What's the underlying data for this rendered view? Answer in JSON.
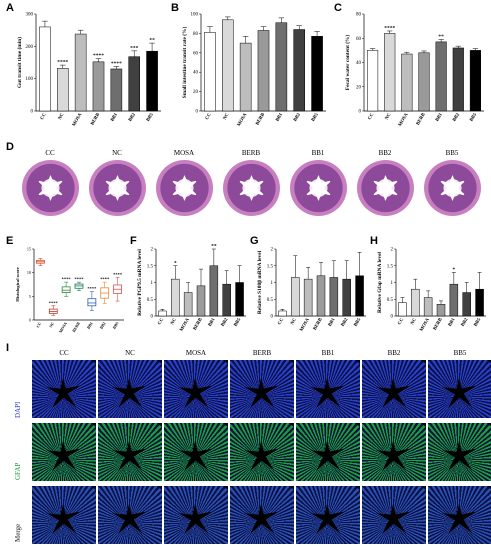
{
  "panel_labels": {
    "A": "A",
    "B": "B",
    "C": "C",
    "D": "D",
    "E": "E",
    "F": "F",
    "G": "G",
    "H": "H",
    "I": "I"
  },
  "groups": [
    "CC",
    "NC",
    "MOSA",
    "BERB",
    "BB1",
    "BB2",
    "BB5"
  ],
  "histology_labels": [
    "CC",
    "NC",
    "MOSA",
    "BERB",
    "BB1",
    "BB2",
    "BB5"
  ],
  "fluor": {
    "columns": [
      "CC",
      "NC",
      "MOSA",
      "BERB",
      "BB1",
      "BB2",
      "BB5"
    ],
    "rows": [
      {
        "label": "DAPI",
        "color": "#2a3fcf"
      },
      {
        "label": "GFAP",
        "color": "#1e9e3a"
      },
      {
        "label": "Merge",
        "color": "#2a4fb8"
      }
    ]
  },
  "chart_data": [
    {
      "id": "A",
      "type": "bar",
      "ylabel": "Gut transit time (min)",
      "ylim": [
        0,
        300
      ],
      "yticks": [
        0,
        100,
        200,
        300
      ],
      "categories": [
        "CC",
        "NC",
        "MOSA",
        "BERB",
        "BB1",
        "BB2",
        "BB5"
      ],
      "values": [
        260,
        132,
        238,
        152,
        130,
        168,
        185
      ],
      "errors": [
        18,
        10,
        12,
        10,
        8,
        18,
        25
      ],
      "sig": [
        "",
        "****",
        "",
        "****",
        "****",
        "***",
        "**"
      ],
      "colors": [
        "#ffffff",
        "#d9d9d9",
        "#bdbdbd",
        "#9a9a9a",
        "#6e6e6e",
        "#404040",
        "#000000"
      ]
    },
    {
      "id": "B",
      "type": "bar",
      "ylabel": "Small intestine transit rate (%)",
      "ylim": [
        0,
        100
      ],
      "yticks": [
        0,
        20,
        40,
        60,
        80,
        100
      ],
      "categories": [
        "CC",
        "NC",
        "MOSA",
        "BERB",
        "BB1",
        "BB2",
        "BB5"
      ],
      "values": [
        81,
        94,
        70,
        83,
        91,
        84,
        77
      ],
      "errors": [
        6,
        3,
        7,
        4,
        5,
        4,
        5
      ],
      "sig": [
        "",
        "",
        "",
        "",
        "",
        "",
        ""
      ],
      "colors": [
        "#ffffff",
        "#d9d9d9",
        "#bdbdbd",
        "#9a9a9a",
        "#6e6e6e",
        "#404040",
        "#000000"
      ]
    },
    {
      "id": "C",
      "type": "bar",
      "ylabel": "Fecal water content (%)",
      "ylim": [
        0,
        80
      ],
      "yticks": [
        0,
        20,
        40,
        60,
        80
      ],
      "categories": [
        "CC",
        "NC",
        "MOSA",
        "BERB",
        "BB1",
        "BB2",
        "BB5"
      ],
      "values": [
        50,
        64,
        47,
        48,
        57,
        52,
        50
      ],
      "errors": [
        1.5,
        2,
        1.5,
        1.5,
        2,
        1.5,
        1.5
      ],
      "sig": [
        "",
        "****",
        "",
        "",
        "**",
        "",
        ""
      ],
      "colors": [
        "#ffffff",
        "#d9d9d9",
        "#bdbdbd",
        "#9a9a9a",
        "#6e6e6e",
        "#404040",
        "#000000"
      ]
    },
    {
      "id": "E",
      "type": "box",
      "ylabel": "Histological score",
      "ylim": [
        0,
        15
      ],
      "yticks": [
        0,
        5,
        10,
        15
      ],
      "categories": [
        "CC",
        "NC",
        "MOSA",
        "BERB",
        "BB1",
        "BB2",
        "BB5"
      ],
      "boxes": [
        [
          11.5,
          12,
          12.3,
          12.6,
          13
        ],
        [
          1,
          1.4,
          1.8,
          2.3,
          3
        ],
        [
          5,
          5.8,
          6.3,
          7,
          8
        ],
        [
          6.2,
          6.7,
          7.2,
          7.6,
          8
        ],
        [
          2,
          3,
          3.6,
          4.5,
          6
        ],
        [
          3.5,
          4.6,
          5.7,
          6.8,
          8
        ],
        [
          4,
          5.6,
          6.5,
          7.4,
          9
        ]
      ],
      "sig": [
        "",
        "****",
        "****",
        "****",
        "****",
        "****",
        "****"
      ],
      "colors": [
        "#d94f2b",
        "#c0392b",
        "#2e8b3e",
        "#1a7f5a",
        "#2f5fb8",
        "#e08a3c",
        "#d9534f"
      ]
    },
    {
      "id": "F",
      "type": "bar",
      "ylabel": "Relative PGP9.5 mRNA level",
      "ylim": [
        0,
        2
      ],
      "yticks": [
        0,
        0.5,
        1,
        1.5,
        2
      ],
      "categories": [
        "CC",
        "NC",
        "MOSA",
        "BERB",
        "BB1",
        "BB2",
        "BB5"
      ],
      "values": [
        0.15,
        1.1,
        0.7,
        0.9,
        1.5,
        0.95,
        1.0
      ],
      "errors": [
        0.05,
        0.4,
        0.3,
        0.5,
        0.5,
        0.4,
        0.5
      ],
      "sig": [
        "",
        "*",
        "",
        "",
        "**",
        "",
        ""
      ],
      "colors": [
        "#ffffff",
        "#d9d9d9",
        "#bdbdbd",
        "#9a9a9a",
        "#6e6e6e",
        "#404040",
        "#000000"
      ]
    },
    {
      "id": "G",
      "type": "bar",
      "ylabel": "Relative S100β mRNA level",
      "ylim": [
        0,
        2
      ],
      "yticks": [
        0,
        0.5,
        1,
        1.5,
        2
      ],
      "categories": [
        "CC",
        "NC",
        "MOSA",
        "BERB",
        "BB1",
        "BB2",
        "BB5"
      ],
      "values": [
        0.15,
        1.15,
        1.1,
        1.2,
        1.15,
        1.1,
        1.2
      ],
      "errors": [
        0.05,
        0.65,
        0.35,
        0.4,
        0.5,
        0.55,
        0.7
      ],
      "sig": [
        "",
        "",
        "",
        "",
        "",
        "",
        ""
      ],
      "colors": [
        "#ffffff",
        "#d9d9d9",
        "#bdbdbd",
        "#9a9a9a",
        "#6e6e6e",
        "#404040",
        "#000000"
      ]
    },
    {
      "id": "H",
      "type": "bar",
      "ylabel": "Relative Gfap mRNA level",
      "ylim": [
        0,
        2
      ],
      "yticks": [
        0,
        0.5,
        1,
        1.5,
        2
      ],
      "categories": [
        "CC",
        "NC",
        "MOSA",
        "BERB",
        "BB1",
        "BB2",
        "BB5"
      ],
      "values": [
        0.4,
        0.8,
        0.55,
        0.35,
        0.95,
        0.7,
        0.8
      ],
      "errors": [
        0.15,
        0.3,
        0.2,
        0.1,
        0.35,
        0.3,
        0.5
      ],
      "sig": [
        "",
        "",
        "",
        "",
        "*",
        "",
        ""
      ],
      "colors": [
        "#ffffff",
        "#d9d9d9",
        "#bdbdbd",
        "#9a9a9a",
        "#6e6e6e",
        "#404040",
        "#000000"
      ]
    }
  ]
}
